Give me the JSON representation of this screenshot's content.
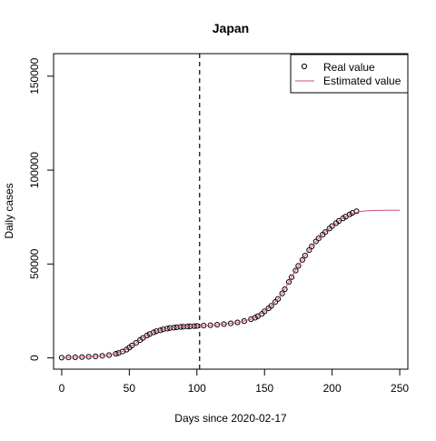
{
  "chart_data": {
    "type": "line",
    "title": "Japan",
    "xlabel": "Days since 2020-02-17",
    "ylabel": "Daily cases",
    "xlim": [
      -6,
      256
    ],
    "ylim": [
      -6000,
      162000
    ],
    "x_ticks": [
      0,
      50,
      100,
      150,
      200,
      250
    ],
    "y_ticks": [
      0,
      50000,
      100000,
      150000
    ],
    "vline_x": 102,
    "legend_position": "top-right",
    "series": [
      {
        "name": "Real value",
        "style": "points",
        "marker": "open-circle",
        "color": "#000000",
        "x": [
          0,
          5,
          10,
          15,
          20,
          25,
          30,
          35,
          40,
          42,
          45,
          48,
          50,
          52,
          55,
          58,
          60,
          63,
          65,
          68,
          70,
          73,
          75,
          78,
          80,
          83,
          85,
          88,
          90,
          93,
          95,
          98,
          100,
          105,
          110,
          115,
          120,
          125,
          130,
          135,
          140,
          143,
          145,
          148,
          150,
          153,
          155,
          158,
          160,
          163,
          165,
          168,
          170,
          173,
          175,
          178,
          180,
          183,
          185,
          188,
          190,
          193,
          195,
          198,
          200,
          203,
          205,
          208,
          210,
          213,
          215,
          218
        ],
        "y": [
          150,
          250,
          350,
          450,
          600,
          800,
          1100,
          1500,
          2200,
          2600,
          3400,
          4400,
          5500,
          6600,
          8000,
          9500,
          10600,
          11900,
          12700,
          13600,
          14200,
          14700,
          15200,
          15600,
          15900,
          16100,
          16300,
          16500,
          16600,
          16700,
          16800,
          16900,
          17000,
          17200,
          17400,
          17700,
          18000,
          18400,
          18900,
          19600,
          20600,
          21400,
          22200,
          23400,
          24800,
          26400,
          27700,
          29800,
          31400,
          34300,
          36600,
          40400,
          43000,
          46500,
          49000,
          52200,
          54500,
          57400,
          59400,
          62000,
          63600,
          65600,
          67000,
          68900,
          70200,
          71800,
          72900,
          74300,
          75200,
          76400,
          77200,
          78100
        ]
      },
      {
        "name": "Estimated value",
        "style": "line",
        "color": "#d0506e",
        "x": [
          0,
          10,
          20,
          30,
          40,
          45,
          50,
          55,
          60,
          65,
          70,
          75,
          80,
          85,
          90,
          100,
          110,
          120,
          130,
          140,
          145,
          150,
          155,
          160,
          165,
          170,
          175,
          180,
          185,
          190,
          195,
          200,
          205,
          210,
          215,
          220,
          225,
          230,
          235,
          240,
          245,
          250
        ],
        "y": [
          150,
          350,
          600,
          1100,
          2200,
          3400,
          5500,
          8000,
          10600,
          12700,
          14200,
          15200,
          15900,
          16300,
          16600,
          17000,
          17400,
          18000,
          18900,
          20600,
          22200,
          24800,
          27700,
          31400,
          36600,
          43000,
          49000,
          54500,
          59400,
          63600,
          67000,
          70200,
          72900,
          75200,
          76900,
          77900,
          78300,
          78500,
          78550,
          78600,
          78600,
          78600
        ]
      }
    ]
  }
}
